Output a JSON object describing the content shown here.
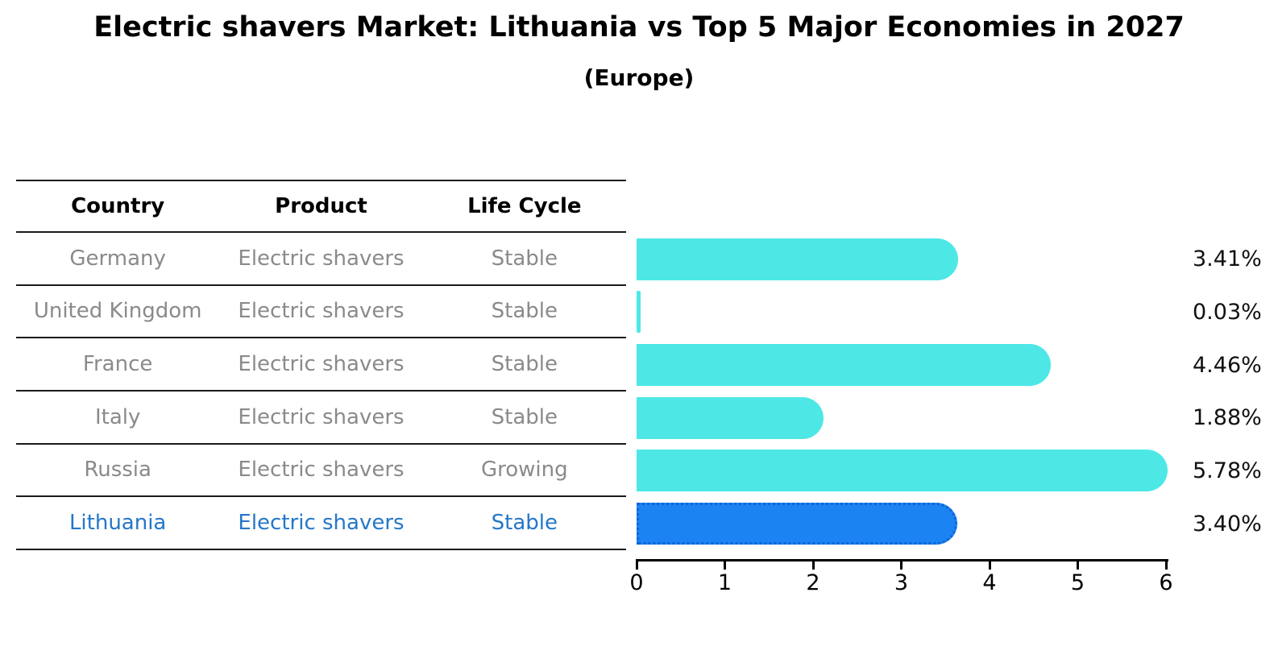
{
  "title": "Electric shavers Market: Lithuania vs Top 5 Major Economies in 2027",
  "subtitle": "(Europe)",
  "table": {
    "headers": [
      "Country",
      "Product",
      "Life Cycle"
    ],
    "rows": [
      {
        "country": "Germany",
        "product": "Electric shavers",
        "life_cycle": "Stable",
        "highlight": false
      },
      {
        "country": "United Kingdom",
        "product": "Electric shavers",
        "life_cycle": "Stable",
        "highlight": false
      },
      {
        "country": "France",
        "product": "Electric shavers",
        "life_cycle": "Stable",
        "highlight": false
      },
      {
        "country": "Italy",
        "product": "Electric shavers",
        "life_cycle": "Stable",
        "highlight": false
      },
      {
        "country": "Russia",
        "product": "Electric shavers",
        "life_cycle": "Growing",
        "highlight": false
      },
      {
        "country": "Lithuania",
        "product": "Electric shavers",
        "life_cycle": "Stable",
        "highlight": true
      }
    ]
  },
  "chart_data": {
    "type": "bar",
    "orientation": "horizontal",
    "title": "Electric shavers Market: Lithuania vs Top 5 Major Economies in 2027",
    "subtitle": "(Europe)",
    "categories": [
      "Germany",
      "United Kingdom",
      "France",
      "Italy",
      "Russia",
      "Lithuania"
    ],
    "values": [
      3.41,
      0.03,
      4.46,
      1.88,
      5.78,
      3.4
    ],
    "value_labels": [
      "3.41%",
      "0.03%",
      "4.46%",
      "1.88%",
      "5.78%",
      "3.40%"
    ],
    "x_ticks": [
      "0",
      "1",
      "2",
      "3",
      "4",
      "5",
      "6"
    ],
    "xlim": [
      0,
      6
    ],
    "grid": false,
    "legend": "none",
    "highlight_index": 5,
    "colors": {
      "bar_default": "#4de8e6",
      "bar_highlight": "#1b84f2",
      "bar_highlight_border": "#0e64d8",
      "row_text": "#8a8a8a",
      "highlight_text": "#2477c9",
      "value_label_text": "#111111"
    }
  }
}
